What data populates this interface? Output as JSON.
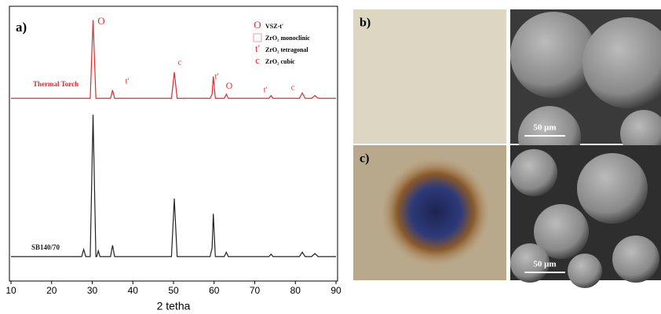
{
  "chart_data": {
    "type": "line",
    "panel_label": "a)",
    "xlabel": "2 tetha",
    "x": [
      10,
      27.4,
      27.9,
      28.4,
      29.5,
      30.2,
      30.9,
      31.1,
      31.5,
      31.9,
      34.5,
      35,
      35.5,
      49.5,
      50.2,
      50.9,
      59,
      59.5,
      59.8,
      60.3,
      62.5,
      63,
      63.5,
      73.5,
      74,
      74.5,
      81,
      81.7,
      82.4,
      84,
      84.8,
      85.6,
      90
    ],
    "series": [
      {
        "name": "Thermal Torch",
        "color": "#e8282b",
        "values": [
          66.5,
          66.5,
          66.5,
          66.5,
          66.5,
          95,
          66.5,
          66.5,
          66.5,
          66.5,
          66.5,
          69.5,
          66.5,
          66.5,
          76,
          66.5,
          66.5,
          68,
          74.5,
          66.5,
          66.5,
          68,
          66.5,
          66.5,
          67.5,
          66.5,
          66.5,
          68.5,
          66.5,
          66.5,
          67.5,
          66.5,
          66.5
        ]
      },
      {
        "name": "SB140/70",
        "color": "#222222",
        "values": [
          8.9,
          8.9,
          11.5,
          8.9,
          8.9,
          60.5,
          8.9,
          8.9,
          11,
          8.9,
          8.9,
          13,
          8.9,
          8.9,
          30,
          8.9,
          8.9,
          12,
          24.5,
          8.9,
          8.9,
          10.5,
          8.9,
          8.9,
          9.8,
          8.9,
          8.9,
          10.5,
          8.9,
          8.9,
          10,
          8.9,
          8.9
        ]
      }
    ],
    "xlim": [
      10,
      90
    ],
    "xticks": [
      10,
      20,
      30,
      40,
      50,
      60,
      70,
      80,
      90
    ],
    "ylim": [
      0,
      100
    ],
    "peak_labels": [
      "O",
      "t'",
      "c",
      "t'",
      "O",
      "t'",
      "c"
    ],
    "phase_legend": [
      {
        "symbol": "O",
        "label": "VSZ-t'"
      },
      {
        "label": "ZrO₂ monoclinic"
      },
      {
        "symbol": "t'",
        "label": "ZrO₂ tetragonal"
      },
      {
        "symbol": "c",
        "label": "ZrO₂ cubic"
      }
    ]
  },
  "images": [
    {
      "panel_label": "b)",
      "scale_bar": "50 μm"
    },
    {
      "panel_label": "c)",
      "scale_bar": "50 μm"
    }
  ]
}
